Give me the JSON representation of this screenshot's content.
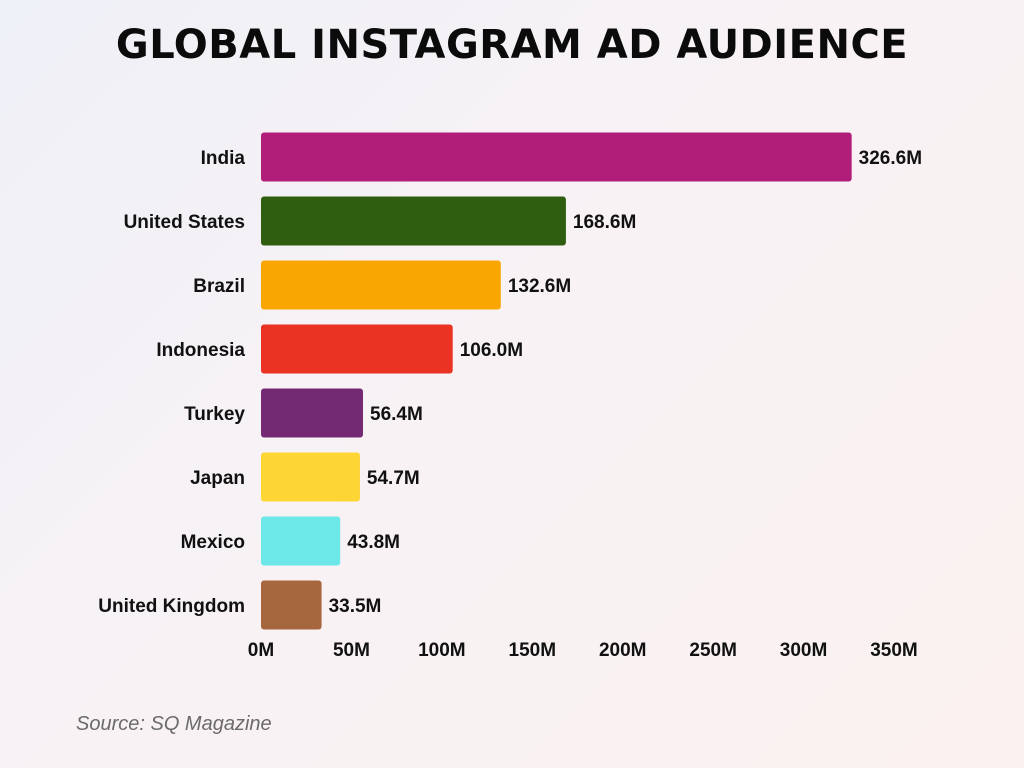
{
  "chart_data": {
    "type": "bar",
    "orientation": "horizontal",
    "title": "GLOBAL INSTAGRAM AD AUDIENCE",
    "categories": [
      "India",
      "United States",
      "Brazil",
      "Indonesia",
      "Turkey",
      "Japan",
      "Mexico",
      "United Kingdom"
    ],
    "values": [
      326.6,
      168.6,
      132.6,
      106.0,
      56.4,
      54.7,
      43.8,
      33.5
    ],
    "value_labels": [
      "326.6M",
      "168.6M",
      "132.6M",
      "106.0M",
      "56.4M",
      "54.7M",
      "43.8M",
      "33.5M"
    ],
    "colors": [
      "#B01E7A",
      "#2F5E10",
      "#F9A602",
      "#EA3323",
      "#742A72",
      "#FDD535",
      "#6DE8E8",
      "#A6673F"
    ],
    "xlim": [
      0,
      350
    ],
    "xticks": [
      0,
      50,
      100,
      150,
      200,
      250,
      300,
      350
    ],
    "xtick_labels": [
      "0M",
      "50M",
      "100M",
      "150M",
      "200M",
      "250M",
      "300M",
      "350M"
    ],
    "xlabel": "",
    "ylabel": "",
    "grid": false,
    "legend": "none"
  },
  "source": "Source: SQ Magazine"
}
